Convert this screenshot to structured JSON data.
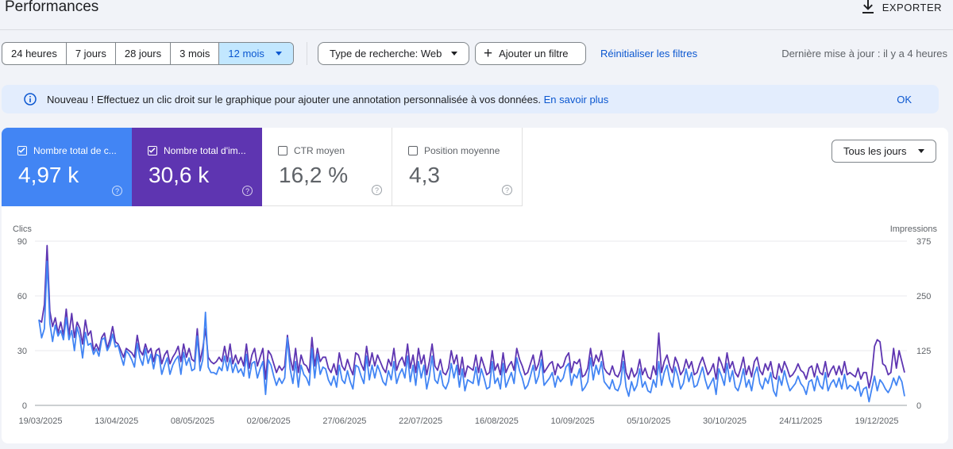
{
  "header": {
    "title": "Performances",
    "export_label": "EXPORTER"
  },
  "filters": {
    "ranges": [
      "24 heures",
      "7 jours",
      "28 jours",
      "3 mois",
      "12 mois"
    ],
    "active_range": "12 mois",
    "search_type": "Type de recherche: Web",
    "add_filter": "Ajouter un filtre",
    "reset": "Réinitialiser les filtres",
    "updated": "Dernière mise à jour : il y a 4 heures"
  },
  "banner": {
    "text": "Nouveau ! Effectuez un clic droit sur le graphique pour ajouter une annotation personnalisée à vos données.",
    "link": "En savoir plus",
    "ok": "OK"
  },
  "metrics": [
    {
      "label": "Nombre total de c...",
      "value": "4,97 k",
      "checked": true,
      "color": "#4285f4"
    },
    {
      "label": "Nombre total d'im...",
      "value": "30,6 k",
      "checked": true,
      "color": "#5e35b1"
    },
    {
      "label": "CTR moyen",
      "value": "16,2 %",
      "checked": false
    },
    {
      "label": "Position moyenne",
      "value": "4,3",
      "checked": false
    }
  ],
  "range_select": "Tous les jours",
  "chart_data": {
    "type": "line",
    "ylabel_left": "Clics",
    "ylabel_right": "Impressions",
    "ylim_left": [
      0,
      90
    ],
    "ylim_right": [
      0,
      375
    ],
    "yticks_left": [
      "0",
      "30",
      "60",
      "90"
    ],
    "yticks_right": [
      "0",
      "125",
      "250",
      "375"
    ],
    "x_ticks": [
      "19/03/2025",
      "13/04/2025",
      "08/05/2025",
      "02/06/2025",
      "27/06/2025",
      "22/07/2025",
      "16/08/2025",
      "10/09/2025",
      "05/10/2025",
      "30/10/2025",
      "24/11/2025",
      "19/12/2025"
    ],
    "grid": true,
    "series": [
      {
        "name": "Nombre total de clics",
        "axis": "left",
        "color": "#4285f4",
        "values": [
          47,
          37,
          42,
          79,
          45,
          35,
          44,
          38,
          41,
          36,
          48,
          36,
          41,
          30,
          43,
          37,
          26,
          40,
          33,
          34,
          28,
          31,
          27,
          36,
          37,
          30,
          33,
          39,
          32,
          33,
          27,
          22,
          30,
          28,
          25,
          21,
          34,
          26,
          22,
          31,
          23,
          28,
          20,
          28,
          27,
          17,
          22,
          26,
          17,
          22,
          25,
          27,
          17,
          29,
          22,
          26,
          19,
          20,
          38,
          19,
          25,
          51,
          21,
          18,
          18,
          17,
          21,
          19,
          27,
          19,
          26,
          18,
          23,
          18,
          20,
          16,
          28,
          15,
          23,
          24,
          15,
          20,
          24,
          6,
          25,
          22,
          16,
          11,
          15,
          12,
          15,
          37,
          20,
          12,
          24,
          10,
          22,
          17,
          15,
          11,
          31,
          15,
          28,
          17,
          21,
          20,
          14,
          11,
          16,
          10,
          22,
          14,
          12,
          19,
          13,
          9,
          22,
          21,
          16,
          12,
          27,
          14,
          22,
          15,
          22,
          18,
          13,
          11,
          19,
          14,
          24,
          12,
          17,
          20,
          15,
          27,
          13,
          22,
          11,
          24,
          15,
          22,
          9,
          16,
          27,
          14,
          12,
          19,
          11,
          9,
          13,
          23,
          15,
          22,
          10,
          20,
          8,
          14,
          13,
          12,
          21,
          11,
          20,
          15,
          9,
          10,
          24,
          12,
          15,
          9,
          23,
          10,
          14,
          18,
          12,
          26,
          19,
          15,
          9,
          11,
          16,
          22,
          12,
          16,
          25,
          11,
          13,
          15,
          18,
          10,
          16,
          13,
          15,
          21,
          23,
          11,
          17,
          15,
          20,
          8,
          10,
          13,
          26,
          14,
          22,
          17,
          24,
          13,
          11,
          9,
          14,
          9,
          8,
          12,
          24,
          10,
          5,
          13,
          8,
          11,
          20,
          10,
          13,
          8,
          7,
          14,
          10,
          24,
          11,
          18,
          22,
          14,
          10,
          21,
          16,
          9,
          12,
          20,
          13,
          18,
          10,
          11,
          16,
          21,
          14,
          9,
          12,
          15,
          6,
          20,
          16,
          11,
          23,
          13,
          19,
          10,
          8,
          13,
          20,
          10,
          14,
          8,
          17,
          21,
          12,
          9,
          15,
          12,
          18,
          8,
          5,
          16,
          11,
          19,
          13,
          8,
          10,
          12,
          16,
          12,
          10,
          6,
          13,
          14,
          8,
          16,
          11,
          9,
          18,
          8,
          12,
          14,
          10,
          15,
          9,
          17,
          9,
          11,
          10,
          8,
          13,
          5,
          9,
          10,
          2,
          9,
          16,
          8,
          14,
          12,
          9,
          7,
          10,
          15,
          11,
          16,
          13,
          5
        ]
      },
      {
        "name": "Nombre total d'impressions",
        "axis": "right",
        "color": "#5e35b1",
        "values": [
          195,
          190,
          230,
          365,
          215,
          180,
          200,
          165,
          190,
          160,
          220,
          160,
          210,
          155,
          190,
          175,
          140,
          195,
          160,
          170,
          125,
          140,
          125,
          155,
          165,
          130,
          150,
          180,
          145,
          140,
          125,
          110,
          130,
          125,
          120,
          110,
          160,
          125,
          115,
          140,
          120,
          130,
          100,
          125,
          130,
          95,
          115,
          125,
          95,
          110,
          120,
          135,
          100,
          140,
          110,
          130,
          105,
          100,
          175,
          100,
          130,
          175,
          110,
          100,
          95,
          100,
          110,
          100,
          135,
          100,
          140,
          95,
          115,
          95,
          110,
          90,
          140,
          85,
          115,
          130,
          90,
          110,
          130,
          60,
          125,
          115,
          95,
          75,
          90,
          80,
          90,
          160,
          110,
          80,
          130,
          75,
          115,
          95,
          90,
          75,
          155,
          90,
          130,
          100,
          110,
          110,
          85,
          75,
          95,
          70,
          120,
          90,
          80,
          105,
          85,
          70,
          120,
          115,
          95,
          80,
          135,
          90,
          120,
          90,
          115,
          100,
          85,
          75,
          105,
          90,
          130,
          80,
          100,
          110,
          90,
          140,
          85,
          115,
          75,
          130,
          95,
          115,
          70,
          100,
          140,
          90,
          80,
          105,
          75,
          70,
          85,
          125,
          95,
          115,
          70,
          110,
          65,
          90,
          85,
          80,
          115,
          75,
          110,
          90,
          70,
          75,
          125,
          80,
          95,
          70,
          120,
          75,
          90,
          100,
          80,
          130,
          105,
          90,
          70,
          75,
          95,
          115,
          80,
          95,
          125,
          75,
          85,
          95,
          100,
          70,
          95,
          85,
          90,
          110,
          120,
          75,
          100,
          95,
          105,
          65,
          70,
          85,
          130,
          90,
          115,
          100,
          125,
          85,
          75,
          70,
          90,
          70,
          65,
          80,
          125,
          75,
          60,
          85,
          65,
          75,
          105,
          70,
          85,
          65,
          60,
          90,
          70,
          165,
          75,
          100,
          115,
          90,
          75,
          110,
          95,
          70,
          80,
          105,
          85,
          100,
          70,
          75,
          95,
          110,
          90,
          70,
          80,
          95,
          60,
          110,
          95,
          75,
          120,
          85,
          100,
          75,
          65,
          85,
          110,
          70,
          90,
          65,
          100,
          110,
          80,
          70,
          95,
          80,
          100,
          65,
          60,
          95,
          75,
          100,
          85,
          65,
          70,
          80,
          95,
          80,
          75,
          60,
          85,
          90,
          65,
          95,
          75,
          70,
          100,
          65,
          80,
          90,
          70,
          90,
          70,
          100,
          70,
          75,
          70,
          65,
          85,
          60,
          75,
          75,
          40,
          70,
          135,
          150,
          145,
          95,
          90,
          70,
          75,
          130,
          85,
          125,
          100,
          75
        ]
      }
    ]
  }
}
